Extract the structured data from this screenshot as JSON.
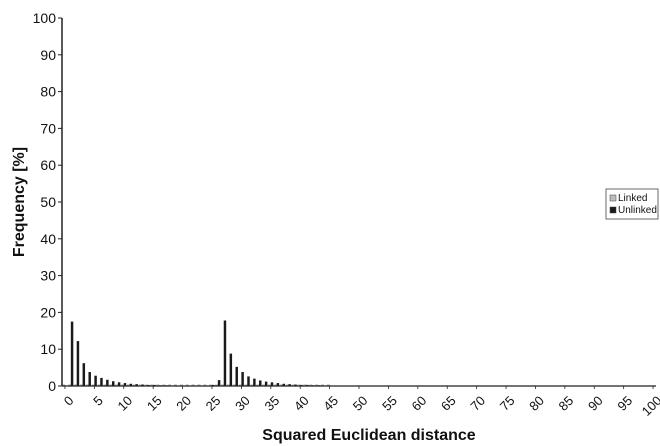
{
  "chart_data": {
    "type": "bar",
    "xlabel": "Squared Euclidean distance",
    "ylabel": "Frequency [%]",
    "ylim": [
      0,
      100
    ],
    "yticks": [
      0,
      10,
      20,
      30,
      40,
      50,
      60,
      70,
      80,
      90,
      100
    ],
    "xlim": [
      0,
      100
    ],
    "xticks": [
      0,
      5,
      10,
      15,
      20,
      25,
      30,
      35,
      40,
      45,
      50,
      55,
      60,
      65,
      70,
      75,
      80,
      85,
      90,
      95,
      100
    ],
    "grid": false,
    "legend_position": "right",
    "series": [
      {
        "name": "Linked",
        "color": "#bdbdbd",
        "x": [
          0,
          1,
          2,
          3,
          4,
          5,
          6,
          7,
          8,
          9,
          10,
          11,
          12,
          13,
          14,
          15,
          16,
          17,
          18,
          19,
          20,
          21,
          22,
          23,
          24,
          25,
          26,
          27,
          28,
          29,
          30,
          31,
          32,
          33,
          34,
          35,
          36,
          37,
          38,
          39,
          40,
          41,
          42,
          43,
          44,
          45
        ],
        "values": [
          0.3,
          0.3,
          0.3,
          0.3,
          0.3,
          0.3,
          0.3,
          0.3,
          0.3,
          0.3,
          0.3,
          0.3,
          0.3,
          0.3,
          0.3,
          0.3,
          0.3,
          0.3,
          0.3,
          0.3,
          0.3,
          0.3,
          0.3,
          0.3,
          0.3,
          0.3,
          0.3,
          0.3,
          0.3,
          0.3,
          0.3,
          0.3,
          0.3,
          0.3,
          0.3,
          0.3,
          0.3,
          0.3,
          0.3,
          0.3,
          0.3,
          0.3,
          0.3,
          0.3,
          0.3,
          0.3
        ]
      },
      {
        "name": "Unlinked",
        "color": "#1a1a1a",
        "x": [
          1,
          2,
          3,
          4,
          5,
          6,
          7,
          8,
          9,
          10,
          11,
          12,
          13,
          14,
          15,
          16,
          17,
          18,
          19,
          20,
          21,
          22,
          23,
          24,
          25,
          26,
          27,
          28,
          29,
          30,
          31,
          32,
          33,
          34,
          35,
          36,
          37,
          38,
          39,
          40,
          41,
          42,
          43,
          44,
          45
        ],
        "values": [
          17.5,
          12.2,
          6.2,
          3.8,
          2.8,
          2.2,
          1.7,
          1.3,
          1.0,
          0.8,
          0.6,
          0.5,
          0.4,
          0.3,
          0.3,
          0.2,
          0.2,
          0.1,
          0.1,
          0.1,
          0.1,
          0.1,
          0.1,
          0.1,
          0.3,
          1.6,
          17.8,
          8.8,
          5.2,
          3.8,
          2.6,
          2.0,
          1.5,
          1.2,
          1.0,
          0.8,
          0.6,
          0.5,
          0.4,
          0.3,
          0.3,
          0.2,
          0.2,
          0.1,
          0.1
        ]
      }
    ]
  }
}
